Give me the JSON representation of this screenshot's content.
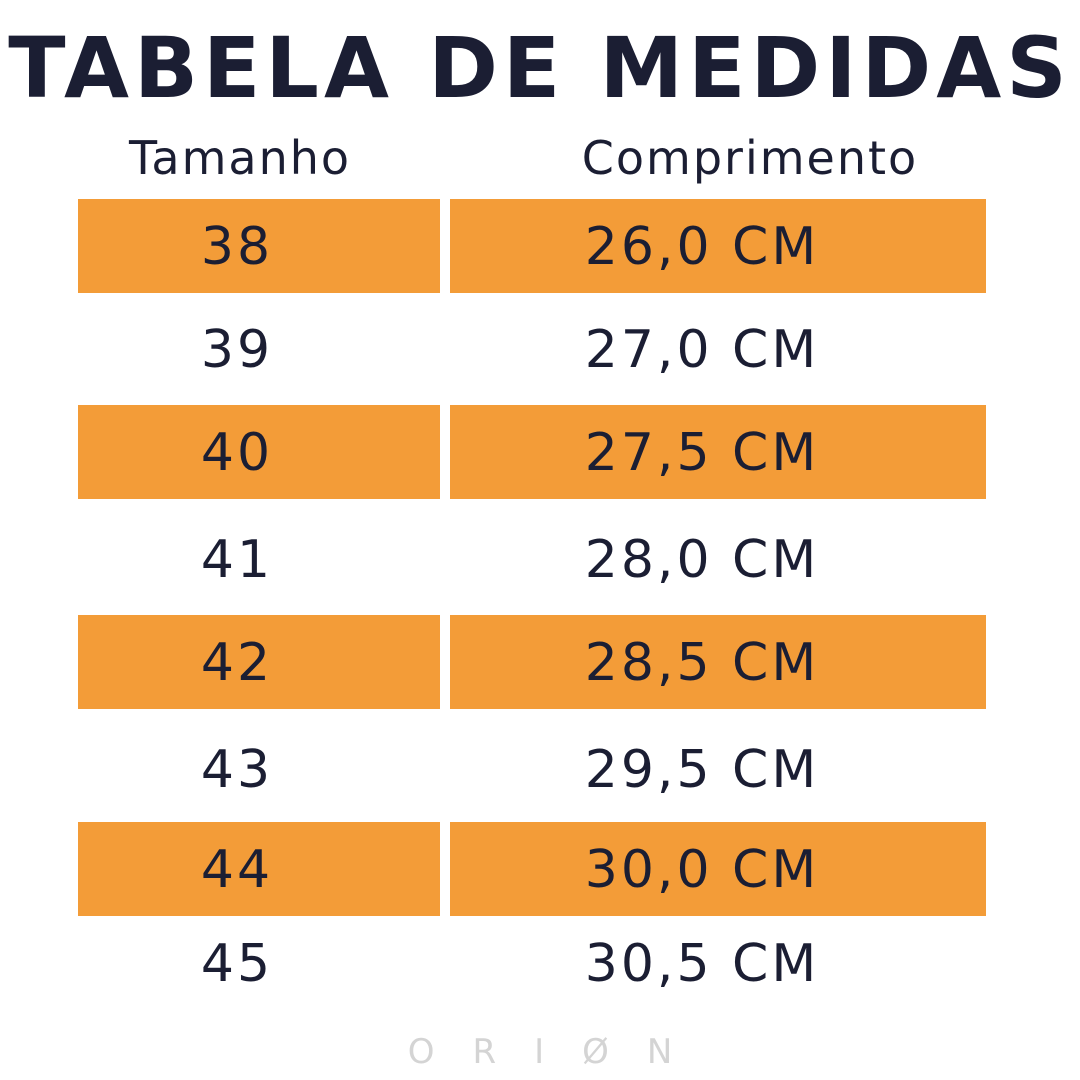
{
  "title": "TABELA DE MEDIDAS",
  "headers": {
    "size": "Tamanho",
    "length": "Comprimento"
  },
  "rows": [
    {
      "size": "38",
      "length": "26,0 CM",
      "highlight": true
    },
    {
      "size": "39",
      "length": "27,0 CM",
      "highlight": false
    },
    {
      "size": "40",
      "length": "27,5 CM",
      "highlight": true
    },
    {
      "size": "41",
      "length": "28,0 CM",
      "highlight": false
    },
    {
      "size": "42",
      "length": "28,5 CM",
      "highlight": true
    },
    {
      "size": "43",
      "length": "29,5 CM",
      "highlight": false
    },
    {
      "size": "44",
      "length": "30,0 CM",
      "highlight": true
    },
    {
      "size": "45",
      "length": "30,5 CM",
      "highlight": false
    }
  ],
  "brand": "ORIØN",
  "colors": {
    "text": "#1b1e33",
    "highlight": "#f39c38",
    "logo": "#d4d4d4"
  }
}
